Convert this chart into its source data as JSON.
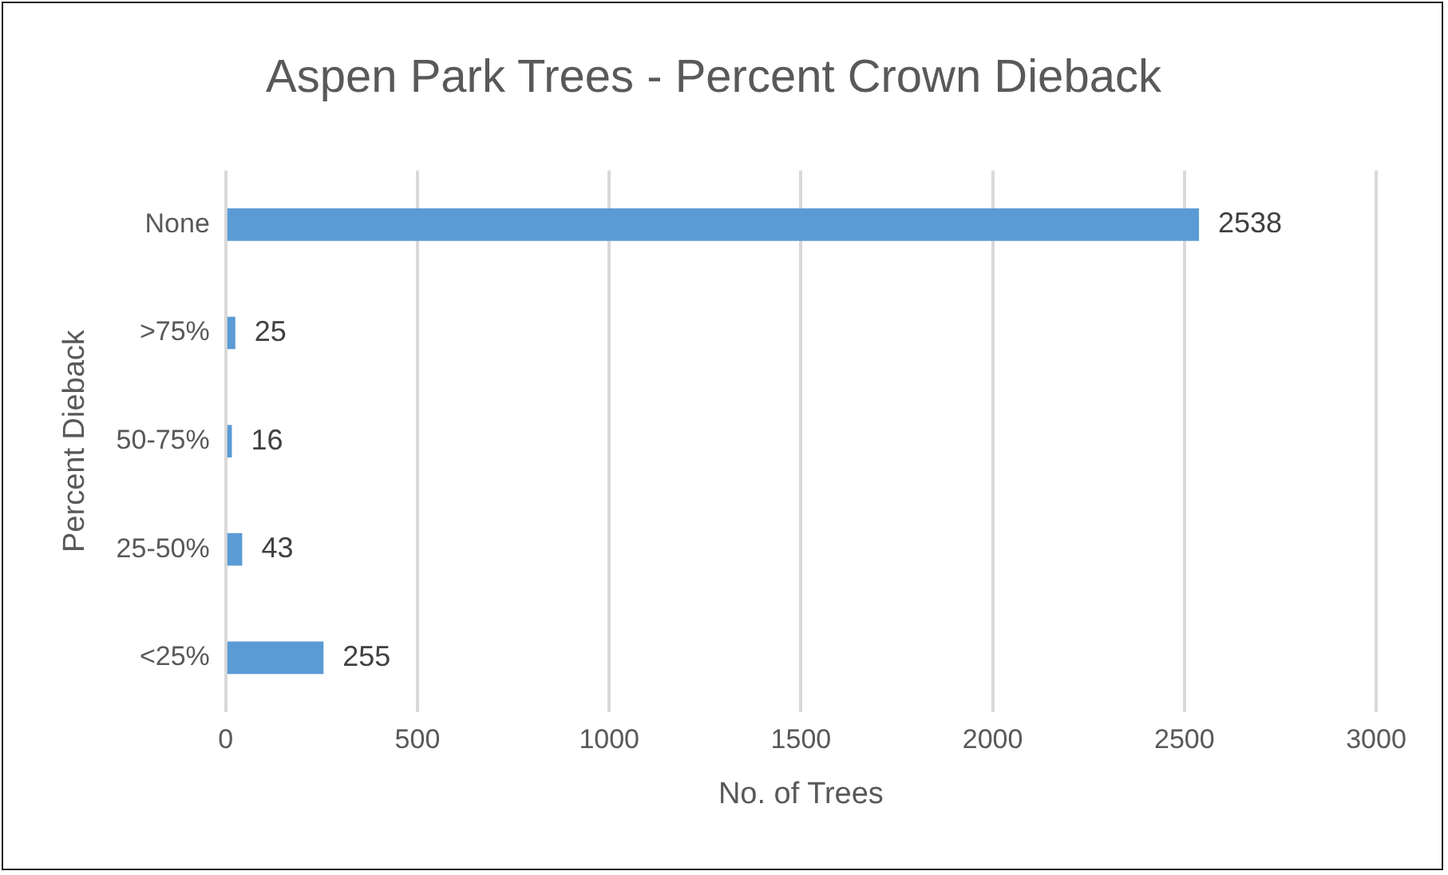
{
  "chart_data": {
    "type": "bar",
    "orientation": "horizontal",
    "title": "Aspen Park Trees - Percent Crown Dieback",
    "xlabel": "No. of Trees",
    "ylabel": "Percent Dieback",
    "categories": [
      "None",
      ">75%",
      "50-75%",
      "25-50%",
      "<25%"
    ],
    "values": [
      2538,
      25,
      16,
      43,
      255
    ],
    "color": "#5b9bd5",
    "xlim": [
      0,
      3000
    ],
    "xticks": [
      0,
      500,
      1000,
      1500,
      2000,
      2500,
      3000
    ],
    "grid": "x",
    "data_labels": true
  }
}
